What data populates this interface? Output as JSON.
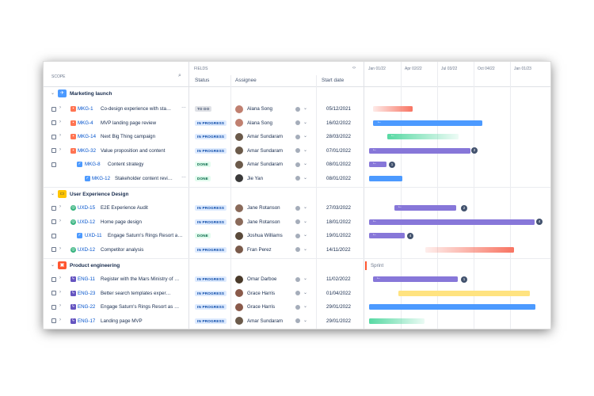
{
  "header": {
    "scope": "SCOPE",
    "fields": "FIELDS",
    "nav_arrows": "‹›",
    "col_status": "Status",
    "col_assignee": "Assignee",
    "col_start": "Start date",
    "quarters": [
      "Jan 01/22",
      "Apr 02/22",
      "Jul 03/22",
      "Oct 04/22",
      "Jan 01/23"
    ]
  },
  "groups": [
    {
      "label": "Marketing launch",
      "icon": "rocket-icon",
      "rows": [
        {
          "key": "MKG-1",
          "summary": "Co-design experience with sta…",
          "status": "TO DO",
          "assignee": "Alana Song",
          "start": "05/12/2021",
          "bar_color": "#f87462",
          "count": ""
        },
        {
          "key": "MKG-4",
          "summary": "MVP landing page review",
          "status": "IN PROGRESS",
          "assignee": "Alana Song",
          "start": "16/02/2022",
          "bar_color": "#4c9aff",
          "count": ""
        },
        {
          "key": "MKG-14",
          "summary": "Next Big Thing campaign",
          "status": "IN PROGRESS",
          "assignee": "Amar Sundaram",
          "start": "28/03/2022",
          "bar_color": "#57d9a3",
          "count": ""
        },
        {
          "key": "MKG-32",
          "summary": "Value proposition and content",
          "status": "IN PROGRESS",
          "assignee": "Amar Sundaram",
          "start": "07/01/2022",
          "bar_color": "#8777d9",
          "count": "2"
        },
        {
          "key": "MKG-8",
          "summary": "Content strategy",
          "status": "DONE",
          "assignee": "Amar Sundaram",
          "start": "08/01/2022",
          "bar_color": "#8777d9",
          "count": "1"
        },
        {
          "key": "MKG-12",
          "summary": "Stakeholder content revi…",
          "status": "DONE",
          "assignee": "Jie Yan",
          "start": "08/01/2022",
          "bar_color": "#4c9aff",
          "count": ""
        }
      ]
    },
    {
      "label": "User Experience Design",
      "icon": "design-icon",
      "rows": [
        {
          "key": "UXD-15",
          "summary": "E2E Experience Audit",
          "status": "IN PROGRESS",
          "assignee": "Jane Rotanson",
          "start": "27/03/2022",
          "bar_color": "#8777d9",
          "count": "2"
        },
        {
          "key": "UXD-12",
          "summary": "Home page design",
          "status": "IN PROGRESS",
          "assignee": "Jane Rotanson",
          "start": "18/01/2022",
          "bar_color": "#8777d9",
          "count": "4"
        },
        {
          "key": "UXD-11",
          "summary": "Engage Saturn's Rings Resort a…",
          "status": "DONE",
          "assignee": "Joshua Williams",
          "start": "19/01/2022",
          "bar_color": "#8777d9",
          "count": "4"
        },
        {
          "key": "UXD-12",
          "summary": "Competitor analysis",
          "status": "IN PROGRESS",
          "assignee": "Fran Perez",
          "start": "14/11/2022",
          "bar_color": "#f87462",
          "count": ""
        }
      ]
    },
    {
      "label": "Product engineering",
      "icon": "engineering-icon",
      "sprint_label": "Sprint",
      "rows": [
        {
          "key": "ENG-11",
          "summary": "Register with the Mars Ministry of …",
          "status": "IN PROGRESS",
          "assignee": "Omar Darboe",
          "start": "11/02/2022",
          "bar_color": "#8777d9",
          "count": "1"
        },
        {
          "key": "ENG-23",
          "summary": "Better search templates exper…",
          "status": "IN PROGRESS",
          "assignee": "Grace Harris",
          "start": "01/04/2022",
          "bar_color": "#ffe380",
          "count": ""
        },
        {
          "key": "ENG-22",
          "summary": "Engage Saturn's Rings Resort as …",
          "status": "IN PROGRESS",
          "assignee": "Grace Harris",
          "start": "29/01/2022",
          "bar_color": "#4c9aff",
          "count": ""
        },
        {
          "key": "ENG-17",
          "summary": "Landing page MVP",
          "status": "IN PROGRESS",
          "assignee": "Amar Sundaram",
          "start": "29/01/2022",
          "bar_color": "#57d9a3",
          "count": ""
        }
      ]
    }
  ]
}
